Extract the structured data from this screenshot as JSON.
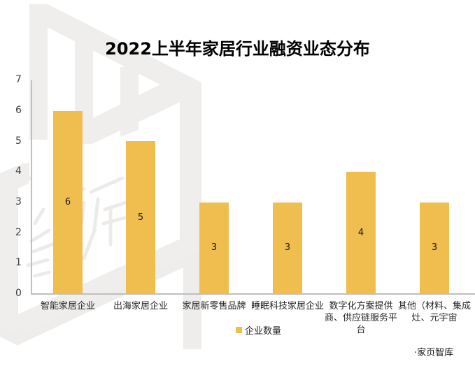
{
  "header": {
    "title": "2022上半年家居行业融资业态分布"
  },
  "legend": {
    "label": "企业数量",
    "color": "#F0BD4F"
  },
  "source": {
    "text": "·家页智库"
  },
  "axis": {
    "y_ticks": [
      "0",
      "1",
      "2",
      "3",
      "4",
      "5",
      "6",
      "7"
    ]
  },
  "categories": [
    {
      "label": "智能家居企业",
      "value": "6"
    },
    {
      "label": "出海家居企业",
      "value": "5"
    },
    {
      "label": "家居新零售品牌",
      "value": "3"
    },
    {
      "label": "睡眠科技家居企业",
      "value": "3"
    },
    {
      "label": "数字化方案提供商、供应链服务平台",
      "value": "4"
    },
    {
      "label": "其他（材料、集成灶、元宇宙",
      "value": "3"
    }
  ],
  "chart_data": {
    "type": "bar",
    "title": "2022上半年家居行业融资业态分布",
    "categories": [
      "智能家居企业",
      "出海家居企业",
      "家居新零售品牌",
      "睡眠科技家居企业",
      "数字化方案提供商、供应链服务平台",
      "其他（材料、集成灶、元宇宙"
    ],
    "series": [
      {
        "name": "企业数量",
        "values": [
          6,
          5,
          3,
          3,
          4,
          3
        ],
        "color": "#F0BD4F"
      }
    ],
    "xlabel": "",
    "ylabel": "",
    "ylim": [
      0,
      7
    ],
    "y_ticks": [
      0,
      1,
      2,
      3,
      4,
      5,
      6,
      7
    ],
    "grid": false,
    "legend_position": "bottom",
    "data_labels": "inside-center",
    "annotations": [
      "·家页智库"
    ]
  }
}
